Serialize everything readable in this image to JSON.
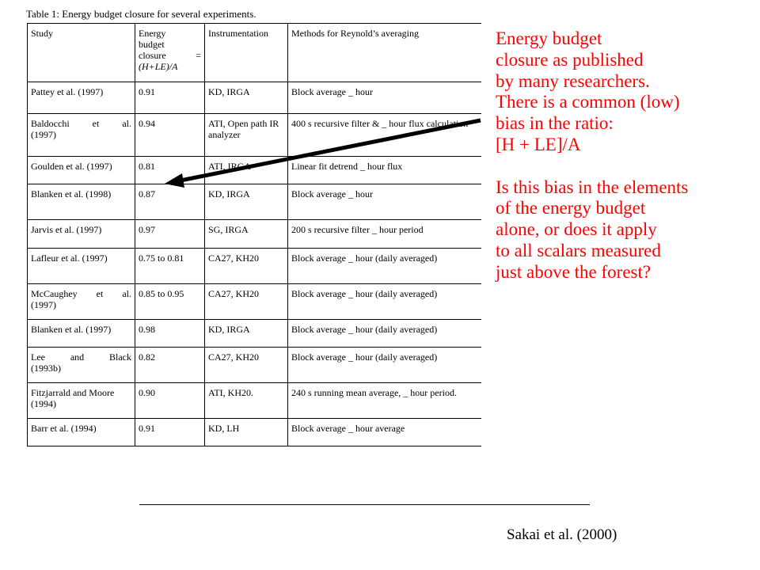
{
  "caption": "Table 1: Energy budget closure for several experiments.",
  "table": {
    "headers": {
      "study": "Study",
      "closure_lines": [
        "Energy",
        "budget",
        "closure",
        "(H+LE)/A"
      ],
      "closure_eq": "=",
      "instrumentation": "Instrumentation",
      "methods": "Methods for Reynold’s averaging"
    },
    "rows": [
      {
        "study": "Pattey et al. (1997)",
        "closure": "0.91",
        "instrumentation": "KD, IRGA",
        "methods": "Block average _ hour"
      },
      {
        "study": "Baldocchi et al. (1997)",
        "closure": "0.94",
        "instrumentation": "ATI, Open path IR analyzer",
        "methods": "400 s recursive filter & _ hour flux calculation"
      },
      {
        "study": "Goulden et al. (1997)",
        "closure": "0.81",
        "instrumentation": "ATI, IRGA",
        "methods": "Linear fit detrend _ hour flux"
      },
      {
        "study": "Blanken et al. (1998)",
        "closure": "0.87",
        "instrumentation": "KD, IRGA",
        "methods": "Block average _ hour"
      },
      {
        "study": "Jarvis et al. (1997)",
        "closure": "0.97",
        "instrumentation": "SG, IRGA",
        "methods": "200 s recursive filter _ hour period"
      },
      {
        "study": "Lafleur et al. (1997)",
        "closure": "0.75 to 0.81",
        "instrumentation": "CA27, KH20",
        "methods": "Block average _ hour (daily averaged)"
      },
      {
        "study": "McCaughey et al. (1997)",
        "closure": "0.85 to 0.95",
        "instrumentation": "CA27, KH20",
        "methods": "Block average _ hour (daily averaged)"
      },
      {
        "study": "Blanken et al. (1997)",
        "closure": "0.98",
        "instrumentation": "KD, IRGA",
        "methods": "Block average _ hour (daily averaged)"
      },
      {
        "study": "Lee and Black (1993b)",
        "closure": "0.82",
        "instrumentation": "CA27, KH20",
        "methods": "Block average _ hour (daily averaged)"
      },
      {
        "study": "Fitzjarrald and Moore (1994)",
        "closure": "0.90",
        "instrumentation": "ATI, KH20.",
        "methods": "240 s running mean average, _ hour period."
      },
      {
        "study": "Barr et al. (1994)",
        "closure": "0.91",
        "instrumentation": "KD, LH",
        "methods": "Block average _ hour average"
      }
    ]
  },
  "note": {
    "lines": [
      "Energy budget",
      "closure as published",
      "by many researchers.",
      "There is a common (low)",
      "bias in the ratio:",
      "[H + LE]/A",
      "",
      "Is this bias in the elements",
      "of the energy budget",
      "alone, or does it apply",
      "to all scalars measured",
      "just above the forest?"
    ]
  },
  "source": "Sakai et al. (2000)",
  "colors": {
    "note_text": "#ff0000",
    "arrow": "#000000"
  }
}
